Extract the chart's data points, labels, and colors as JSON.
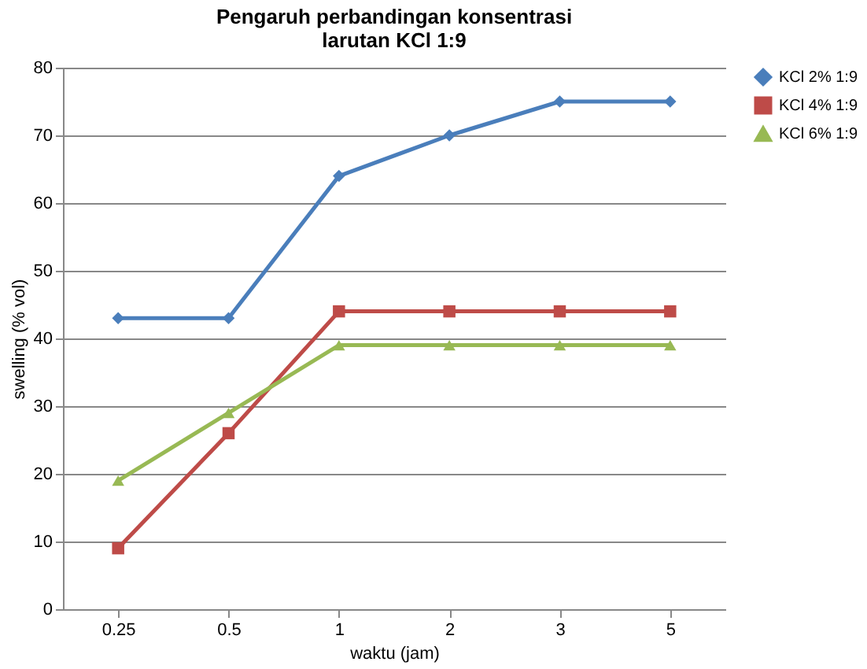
{
  "chart_data": {
    "type": "line",
    "title": "Pengaruh perbandingan konsentrasi\nlarutan KCl 1:9",
    "xlabel": "waktu (jam)",
    "ylabel": "swelling (% vol)",
    "categories": [
      "0.25",
      "0.5",
      "1",
      "2",
      "3",
      "5"
    ],
    "series": [
      {
        "name": "KCl 2% 1:9",
        "color": "#4a7ebb",
        "marker": "diamond",
        "values": [
          43,
          43,
          64,
          70,
          75,
          75
        ]
      },
      {
        "name": "KCl 4% 1:9",
        "color": "#be4b48",
        "marker": "square",
        "values": [
          9,
          26,
          44,
          44,
          44,
          44
        ]
      },
      {
        "name": "KCl 6% 1:9",
        "color": "#98b954",
        "marker": "triangle",
        "values": [
          19,
          29,
          39,
          39,
          39,
          39
        ]
      }
    ],
    "ylim": [
      0,
      80
    ],
    "yticks": [
      0,
      10,
      20,
      30,
      40,
      50,
      60,
      70,
      80
    ],
    "grid": "y",
    "legend": "right",
    "line_style": "solid"
  }
}
